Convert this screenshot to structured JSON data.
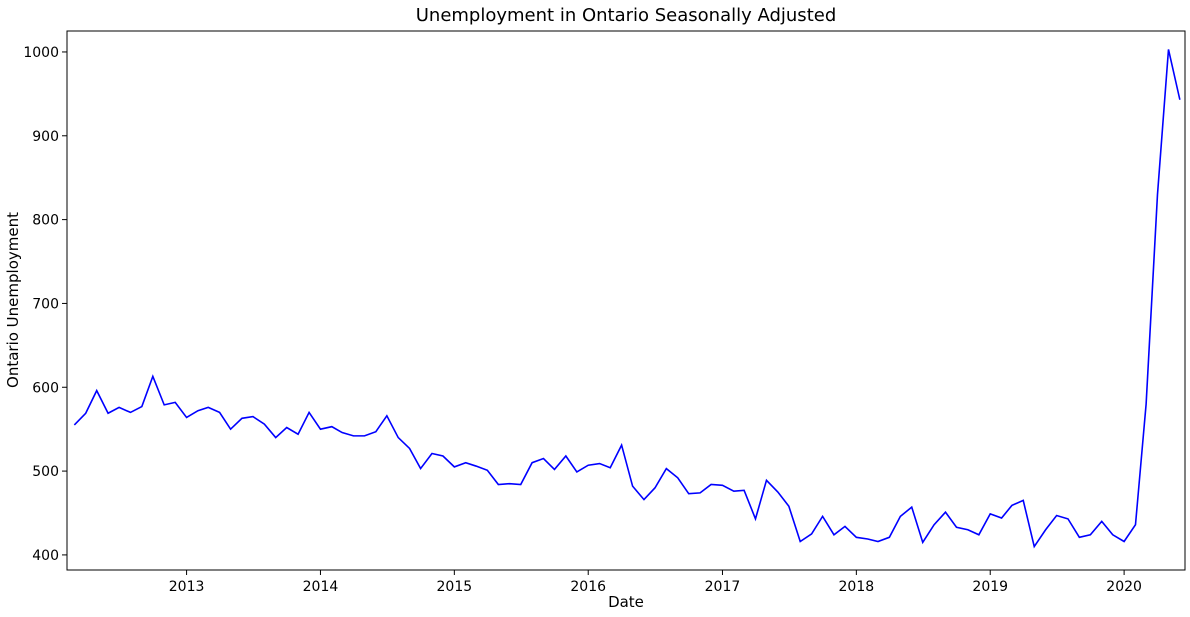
{
  "chart_data": {
    "type": "line",
    "title": "Unemployment in Ontario Seasonally Adjusted",
    "xlabel": "Date",
    "ylabel": "Ontario Unemployment",
    "xlim": [
      "2012-02-10",
      "2020-06-15"
    ],
    "ylim": [
      382,
      1025
    ],
    "x_ticks": [
      "2013",
      "2014",
      "2015",
      "2016",
      "2017",
      "2018",
      "2019",
      "2020"
    ],
    "y_ticks": [
      400,
      500,
      600,
      700,
      800,
      900,
      1000
    ],
    "grid": false,
    "line_color": "#0000ff",
    "series": [
      {
        "x": [
          "2012-03",
          "2012-04",
          "2012-05",
          "2012-06",
          "2012-07",
          "2012-08",
          "2012-09",
          "2012-10",
          "2012-11",
          "2012-12",
          "2013-01",
          "2013-02",
          "2013-03",
          "2013-04",
          "2013-05",
          "2013-06",
          "2013-07",
          "2013-08",
          "2013-09",
          "2013-10",
          "2013-11",
          "2013-12",
          "2014-01",
          "2014-02",
          "2014-03",
          "2014-04",
          "2014-05",
          "2014-06",
          "2014-07",
          "2014-08",
          "2014-09",
          "2014-10",
          "2014-11",
          "2014-12",
          "2015-01",
          "2015-02",
          "2015-03",
          "2015-04",
          "2015-05",
          "2015-06",
          "2015-07",
          "2015-08",
          "2015-09",
          "2015-10",
          "2015-11",
          "2015-12",
          "2016-01",
          "2016-02",
          "2016-03",
          "2016-04",
          "2016-05",
          "2016-06",
          "2016-07",
          "2016-08",
          "2016-09",
          "2016-10",
          "2016-11",
          "2016-12",
          "2017-01",
          "2017-02",
          "2017-03",
          "2017-04",
          "2017-05",
          "2017-06",
          "2017-07",
          "2017-08",
          "2017-09",
          "2017-10",
          "2017-11",
          "2017-12",
          "2018-01",
          "2018-02",
          "2018-03",
          "2018-04",
          "2018-05",
          "2018-06",
          "2018-07",
          "2018-08",
          "2018-09",
          "2018-10",
          "2018-11",
          "2018-12",
          "2019-01",
          "2019-02",
          "2019-03",
          "2019-04",
          "2019-05",
          "2019-06",
          "2019-07",
          "2019-08",
          "2019-09",
          "2019-10",
          "2019-11",
          "2019-12",
          "2020-01",
          "2020-02",
          "2020-03",
          "2020-04",
          "2020-05",
          "2020-06"
        ],
        "values": [
          555,
          569,
          596,
          569,
          576,
          570,
          577,
          613,
          579,
          582,
          564,
          572,
          576,
          570,
          550,
          563,
          565,
          556,
          540,
          552,
          544,
          570,
          550,
          553,
          546,
          542,
          542,
          547,
          566,
          540,
          527,
          503,
          521,
          518,
          505,
          510,
          506,
          501,
          484,
          485,
          484,
          510,
          515,
          502,
          518,
          499,
          507,
          509,
          504,
          531,
          482,
          466,
          480,
          503,
          492,
          473,
          474,
          484,
          483,
          476,
          477,
          443,
          489,
          475,
          458,
          416,
          425,
          446,
          424,
          434,
          421,
          419,
          416,
          421,
          446,
          457,
          415,
          436,
          451,
          433,
          430,
          424,
          449,
          444,
          459,
          465,
          410,
          430,
          447,
          443,
          421,
          424,
          440,
          424,
          416,
          436,
          580,
          830,
          1003,
          943
        ]
      }
    ]
  }
}
